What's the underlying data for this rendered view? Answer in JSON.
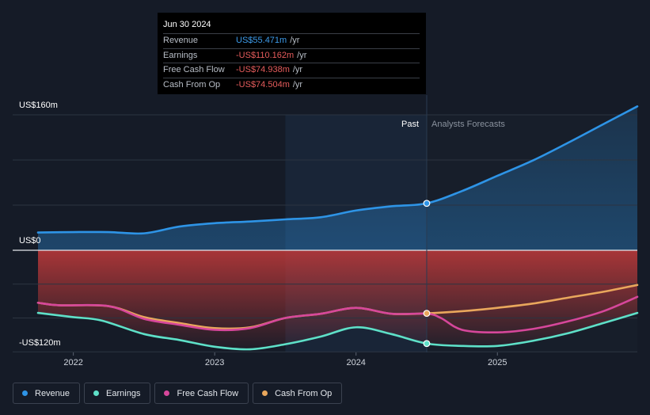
{
  "chart_data": {
    "type": "area",
    "y_axis": {
      "top_label": "US$160m",
      "zero_label": "US$0",
      "bottom_label": "-US$120m",
      "ylim": [
        -120,
        160
      ]
    },
    "x_axis": {
      "xlim": [
        2021.75,
        2025.99
      ],
      "ticks": [
        {
          "value": 2022,
          "label": "2022"
        },
        {
          "value": 2023,
          "label": "2023"
        },
        {
          "value": 2024,
          "label": "2024"
        },
        {
          "value": 2025,
          "label": "2025"
        }
      ]
    },
    "past_boundary": 2024.5,
    "highlight_start": 2023.5,
    "period_labels": {
      "past": "Past",
      "forecast": "Analysts Forecasts"
    },
    "series": [
      {
        "name": "Revenue",
        "color": "#2e94e6",
        "points": [
          [
            2021.75,
            21
          ],
          [
            2022.0,
            21.5
          ],
          [
            2022.25,
            21.5
          ],
          [
            2022.5,
            20
          ],
          [
            2022.75,
            28
          ],
          [
            2023.0,
            32
          ],
          [
            2023.25,
            34
          ],
          [
            2023.5,
            36.5
          ],
          [
            2023.75,
            39
          ],
          [
            2024.0,
            47
          ],
          [
            2024.25,
            52
          ],
          [
            2024.5,
            55.471
          ],
          [
            2024.75,
            70
          ],
          [
            2025.0,
            88
          ],
          [
            2025.25,
            106
          ],
          [
            2025.5,
            127
          ],
          [
            2025.75,
            149
          ],
          [
            2025.99,
            170
          ]
        ]
      },
      {
        "name": "Earnings",
        "color": "#5ee0c8",
        "points": [
          [
            2021.75,
            -74
          ],
          [
            2022.0,
            -79
          ],
          [
            2022.2,
            -83
          ],
          [
            2022.5,
            -99
          ],
          [
            2022.75,
            -106
          ],
          [
            2023.0,
            -114
          ],
          [
            2023.25,
            -117
          ],
          [
            2023.5,
            -111
          ],
          [
            2023.75,
            -102
          ],
          [
            2024.0,
            -91
          ],
          [
            2024.25,
            -99
          ],
          [
            2024.5,
            -110.162
          ],
          [
            2024.75,
            -113
          ],
          [
            2025.0,
            -113
          ],
          [
            2025.25,
            -107
          ],
          [
            2025.5,
            -98
          ],
          [
            2025.75,
            -86
          ],
          [
            2025.99,
            -74
          ]
        ]
      },
      {
        "name": "Free Cash Flow",
        "color": "#d6479b",
        "points": [
          [
            2021.75,
            -62
          ],
          [
            2021.9,
            -65
          ],
          [
            2022.25,
            -66
          ],
          [
            2022.5,
            -81
          ],
          [
            2022.75,
            -88
          ],
          [
            2023.0,
            -94
          ],
          [
            2023.25,
            -92
          ],
          [
            2023.5,
            -80
          ],
          [
            2023.75,
            -75
          ],
          [
            2024.0,
            -68
          ],
          [
            2024.25,
            -75
          ],
          [
            2024.5,
            -74.938
          ],
          [
            2024.6,
            -80
          ],
          [
            2024.75,
            -94
          ],
          [
            2025.0,
            -97
          ],
          [
            2025.25,
            -93
          ],
          [
            2025.5,
            -84
          ],
          [
            2025.75,
            -72
          ],
          [
            2025.99,
            -55
          ]
        ]
      },
      {
        "name": "Cash From Op",
        "color": "#e9a75c",
        "points": [
          [
            2021.75,
            -62
          ],
          [
            2021.9,
            -65
          ],
          [
            2022.25,
            -66
          ],
          [
            2022.5,
            -79
          ],
          [
            2022.75,
            -86
          ],
          [
            2023.0,
            -92
          ],
          [
            2023.25,
            -91
          ],
          [
            2023.5,
            -80
          ],
          [
            2023.75,
            -75
          ],
          [
            2024.0,
            -68
          ],
          [
            2024.25,
            -75
          ],
          [
            2024.5,
            -74.504
          ],
          [
            2024.75,
            -72
          ],
          [
            2025.0,
            -68
          ],
          [
            2025.25,
            -63
          ],
          [
            2025.5,
            -56
          ],
          [
            2025.75,
            -49
          ],
          [
            2025.99,
            -41
          ]
        ]
      }
    ]
  },
  "tooltip": {
    "date": "Jun 30 2024",
    "rows": [
      {
        "name": "Revenue",
        "value": "US$55.471m",
        "unit": "/yr"
      },
      {
        "name": "Earnings",
        "value": "-US$110.162m",
        "unit": "/yr"
      },
      {
        "name": "Free Cash Flow",
        "value": "-US$74.938m",
        "unit": "/yr"
      },
      {
        "name": "Cash From Op",
        "value": "-US$74.504m",
        "unit": "/yr"
      }
    ]
  },
  "legend": [
    {
      "label": "Revenue",
      "color": "#2e94e6"
    },
    {
      "label": "Earnings",
      "color": "#5ee0c8"
    },
    {
      "label": "Free Cash Flow",
      "color": "#d6479b"
    },
    {
      "label": "Cash From Op",
      "color": "#e9a75c"
    }
  ]
}
